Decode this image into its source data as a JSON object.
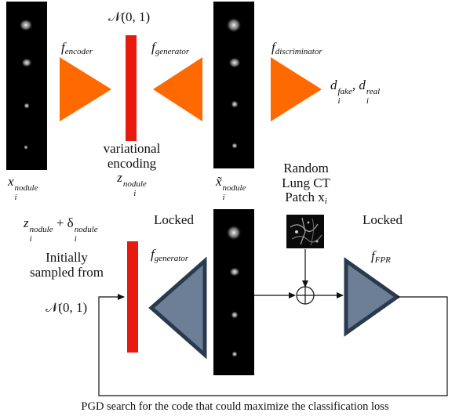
{
  "top": {
    "encoder_label": "encoder",
    "generator_label": "generator",
    "discriminator_label": "discriminator",
    "noise_label": "𝒩(0, 1)",
    "input_var": "x",
    "input_sub": "i",
    "input_sup": "nodule",
    "latent_caption_line1": "variational",
    "latent_caption_line2": "encoding",
    "latent_var": "z",
    "latent_sub": "i",
    "latent_sup": "nodule",
    "recon_var": "x̃",
    "recon_sub": "i",
    "recon_sup": "nodule",
    "output_d": "d",
    "output_sub": "i",
    "output_sup_fake": "fake",
    "output_sup_real": "real",
    "output_sep": ", d"
  },
  "bottom": {
    "latent_z": "z",
    "latent_z_sub": "i",
    "latent_z_sup": "nodule",
    "plus": " + δ",
    "delta_sub": "i",
    "delta_sup": "nodule",
    "initially_line1": "Initially",
    "initially_line2": "sampled from",
    "noise_label": "𝒩(0, 1)",
    "locked_left": "Locked",
    "locked_right": "Locked",
    "generator_label": "generator",
    "fpr_label": "FPR",
    "random_line1": "Random",
    "random_line2": "Lung CT",
    "random_line3": "Patch x",
    "random_sub": "i",
    "caption": "PGD search for the code that could maximize the classification loss"
  },
  "colors": {
    "encoder_fill": "#ff6a00",
    "latent_bar": "#e81a10",
    "locked_fill": "#6c7f96",
    "locked_stroke": "#2a3a4e",
    "strip_bg": "#000000"
  }
}
